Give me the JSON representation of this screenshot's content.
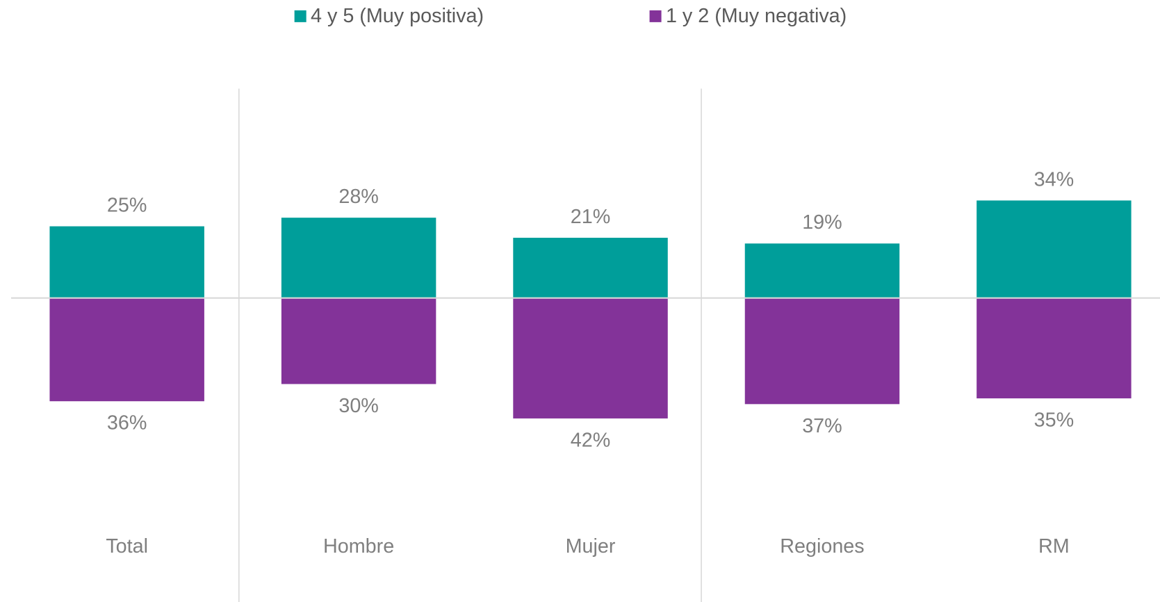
{
  "chart_data": {
    "type": "bar",
    "categories": [
      "Total",
      "Hombre",
      "Mujer",
      "Regiones",
      "RM"
    ],
    "series": [
      {
        "name": "4 y 5 (Muy positiva)",
        "color": "#009e9a",
        "values": [
          25,
          28,
          21,
          19,
          34
        ],
        "value_labels": [
          "25%",
          "28%",
          "21%",
          "19%",
          "34%"
        ]
      },
      {
        "name": "1 y 2 (Muy negativa)",
        "color": "#833399",
        "values": [
          -36,
          -30,
          -42,
          -37,
          -35
        ],
        "value_labels": [
          "36%",
          "30%",
          "42%",
          "37%",
          "35%"
        ]
      }
    ],
    "ylim": [
      -106,
      73
    ]
  }
}
